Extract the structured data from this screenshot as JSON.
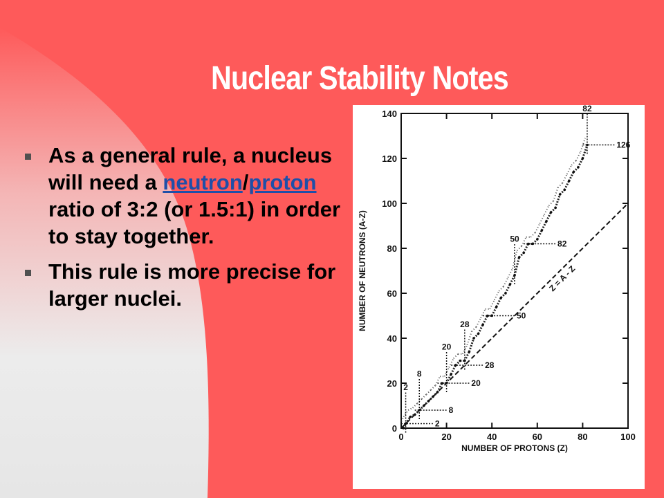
{
  "title": "Nuclear Stability Notes",
  "bullets": [
    {
      "parts": [
        {
          "text": "As a general rule, a nucleus will need a ",
          "link": false
        },
        {
          "text": "neutron",
          "link": true
        },
        {
          "text": "/",
          "link": false
        },
        {
          "text": "proton",
          "link": true
        },
        {
          "text": " ratio of 3:2 (or 1.5:1) in order to stay together.",
          "link": false
        }
      ]
    },
    {
      "parts": [
        {
          "text": "This rule is more precise for larger nuclei.",
          "link": false
        }
      ]
    }
  ],
  "colors": {
    "background": "#fe5a5a",
    "title": "#ffffff",
    "link": "#1f4fa8",
    "bullet_mark": "#505050"
  },
  "chart_data": {
    "type": "scatter",
    "title": "",
    "xlabel": "NUMBER OF PROTONS (Z)",
    "ylabel": "NUMBER OF NEUTRONS (A-Z)",
    "xlim": [
      0,
      100
    ],
    "ylim": [
      0,
      140
    ],
    "x_ticks": [
      0,
      20,
      40,
      60,
      80,
      100
    ],
    "y_ticks": [
      0,
      20,
      40,
      60,
      80,
      100,
      120,
      140
    ],
    "grid": false,
    "reference_line": {
      "label": "Z = A - Z",
      "slope": 1,
      "intercept": 0
    },
    "stable_band": [
      [
        1,
        0
      ],
      [
        2,
        2
      ],
      [
        4,
        5
      ],
      [
        6,
        6
      ],
      [
        8,
        8
      ],
      [
        10,
        10
      ],
      [
        12,
        12
      ],
      [
        14,
        14
      ],
      [
        16,
        16
      ],
      [
        18,
        20
      ],
      [
        20,
        20
      ],
      [
        22,
        24
      ],
      [
        24,
        28
      ],
      [
        26,
        30
      ],
      [
        28,
        30
      ],
      [
        30,
        34
      ],
      [
        32,
        40
      ],
      [
        34,
        42
      ],
      [
        36,
        46
      ],
      [
        38,
        50
      ],
      [
        40,
        50
      ],
      [
        42,
        54
      ],
      [
        44,
        58
      ],
      [
        46,
        60
      ],
      [
        48,
        64
      ],
      [
        50,
        68
      ],
      [
        52,
        76
      ],
      [
        54,
        78
      ],
      [
        56,
        82
      ],
      [
        58,
        82
      ],
      [
        60,
        84
      ],
      [
        62,
        88
      ],
      [
        64,
        92
      ],
      [
        66,
        96
      ],
      [
        68,
        98
      ],
      [
        70,
        104
      ],
      [
        72,
        106
      ],
      [
        74,
        110
      ],
      [
        76,
        114
      ],
      [
        78,
        116
      ],
      [
        80,
        120
      ],
      [
        82,
        126
      ]
    ],
    "magic_numbers": {
      "protons": [
        2,
        8,
        20,
        28,
        50,
        82
      ],
      "neutrons": [
        2,
        8,
        20,
        28,
        50,
        82,
        126
      ]
    }
  }
}
